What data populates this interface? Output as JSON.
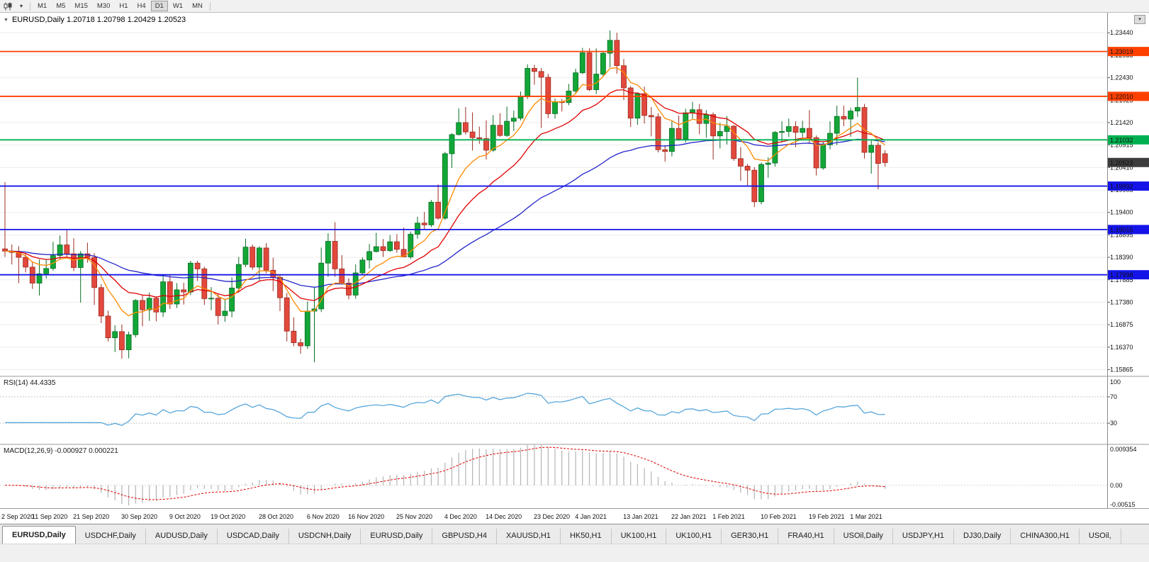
{
  "toolbar": {
    "chart_type_icon": "candlestick-chart-icon",
    "dropdown_glyph": "▾",
    "timeframes": [
      {
        "label": "M1",
        "active": false
      },
      {
        "label": "M5",
        "active": false
      },
      {
        "label": "M15",
        "active": false
      },
      {
        "label": "M30",
        "active": false
      },
      {
        "label": "H1",
        "active": false
      },
      {
        "label": "H4",
        "active": false
      },
      {
        "label": "D1",
        "active": true
      },
      {
        "label": "W1",
        "active": false
      },
      {
        "label": "MN",
        "active": false
      }
    ]
  },
  "chart": {
    "title": "EURUSD,Daily 1.20718 1.20798 1.20429 1.20523",
    "collapse_glyph": "▼",
    "corner_button_glyph": "▾"
  },
  "indicators": {
    "rsi": {
      "label": "RSI(14) 44.4335"
    },
    "macd": {
      "label": "MACD(12,26,9) -0.000927 0.000221"
    }
  },
  "chart_data": {
    "type": "candlestick",
    "symbol": "EURUSD",
    "timeframe": "Daily",
    "ohlc_current": {
      "open": 1.20718,
      "high": 1.20798,
      "low": 1.20429,
      "close": 1.20523
    },
    "ylim": [
      1.1573,
      1.2389
    ],
    "price_ticks": [
      "1.23440",
      "1.22935",
      "1.22430",
      "1.21925",
      "1.21420",
      "1.20915",
      "1.20410",
      "1.19905",
      "1.19400",
      "1.18895",
      "1.18390",
      "1.17885",
      "1.17380",
      "1.16875",
      "1.16370",
      "1.15865"
    ],
    "colors": {
      "bull": "#12a637",
      "bull_border": "#0a6e26",
      "bear": "#e2483c",
      "bear_border": "#9c2d22"
    },
    "candles": [
      [
        1.1858,
        1.2008,
        1.184,
        1.1853
      ],
      [
        1.1853,
        1.1868,
        1.1823,
        1.185
      ],
      [
        1.185,
        1.1864,
        1.1781,
        1.1839
      ],
      [
        1.1839,
        1.1848,
        1.1805,
        1.1817
      ],
      [
        1.1817,
        1.1829,
        1.1768,
        1.1781
      ],
      [
        1.1781,
        1.1834,
        1.1753,
        1.1802
      ],
      [
        1.1802,
        1.1835,
        1.1791,
        1.1814
      ],
      [
        1.1814,
        1.1874,
        1.1809,
        1.1843
      ],
      [
        1.1843,
        1.1888,
        1.1835,
        1.1867
      ],
      [
        1.1867,
        1.19,
        1.184,
        1.1847
      ],
      [
        1.1847,
        1.1882,
        1.1808,
        1.1816
      ],
      [
        1.1816,
        1.1853,
        1.1737,
        1.1847
      ],
      [
        1.1847,
        1.1872,
        1.1827,
        1.1839
      ],
      [
        1.1839,
        1.1848,
        1.1732,
        1.1771
      ],
      [
        1.1771,
        1.1779,
        1.1691,
        1.1707
      ],
      [
        1.1707,
        1.1719,
        1.165,
        1.1658
      ],
      [
        1.1658,
        1.1686,
        1.1626,
        1.1672
      ],
      [
        1.1672,
        1.1688,
        1.1611,
        1.1631
      ],
      [
        1.1631,
        1.1672,
        1.1612,
        1.1665
      ],
      [
        1.1665,
        1.1745,
        1.1659,
        1.1742
      ],
      [
        1.1742,
        1.1755,
        1.1684,
        1.1721
      ],
      [
        1.1721,
        1.176,
        1.1696,
        1.1747
      ],
      [
        1.1747,
        1.1751,
        1.1695,
        1.1716
      ],
      [
        1.1716,
        1.1797,
        1.1705,
        1.1784
      ],
      [
        1.1784,
        1.1799,
        1.1723,
        1.1734
      ],
      [
        1.1734,
        1.1781,
        1.1725,
        1.1766
      ],
      [
        1.1766,
        1.1782,
        1.1733,
        1.1761
      ],
      [
        1.1761,
        1.1831,
        1.1754,
        1.1826
      ],
      [
        1.1826,
        1.1831,
        1.1786,
        1.1813
      ],
      [
        1.1813,
        1.1818,
        1.1732,
        1.1746
      ],
      [
        1.1746,
        1.1772,
        1.172,
        1.1747
      ],
      [
        1.1747,
        1.1758,
        1.1688,
        1.1708
      ],
      [
        1.1708,
        1.1746,
        1.1694,
        1.1718
      ],
      [
        1.1718,
        1.1794,
        1.1704,
        1.177
      ],
      [
        1.177,
        1.184,
        1.176,
        1.1823
      ],
      [
        1.1823,
        1.1881,
        1.1817,
        1.1862
      ],
      [
        1.1862,
        1.1868,
        1.1811,
        1.1817
      ],
      [
        1.1817,
        1.1864,
        1.1787,
        1.186
      ],
      [
        1.186,
        1.1871,
        1.1803,
        1.181
      ],
      [
        1.181,
        1.1838,
        1.1763,
        1.1794
      ],
      [
        1.1794,
        1.18,
        1.1718,
        1.1748
      ],
      [
        1.1748,
        1.1759,
        1.165,
        1.1673
      ],
      [
        1.1673,
        1.1704,
        1.1639,
        1.1647
      ],
      [
        1.1647,
        1.1656,
        1.1622,
        1.164
      ],
      [
        1.164,
        1.174,
        1.1633,
        1.1718
      ],
      [
        1.1718,
        1.1771,
        1.1603,
        1.1723
      ],
      [
        1.1723,
        1.1861,
        1.1716,
        1.1826
      ],
      [
        1.1826,
        1.1893,
        1.1795,
        1.1875
      ],
      [
        1.1875,
        1.1918,
        1.1795,
        1.1813
      ],
      [
        1.1813,
        1.1844,
        1.1778,
        1.1781
      ],
      [
        1.1781,
        1.1792,
        1.1745,
        1.1754
      ],
      [
        1.1754,
        1.1823,
        1.1746,
        1.1804
      ],
      [
        1.1804,
        1.1839,
        1.1799,
        1.1833
      ],
      [
        1.1833,
        1.1869,
        1.1814,
        1.1852
      ],
      [
        1.1852,
        1.1894,
        1.185,
        1.1863
      ],
      [
        1.1863,
        1.188,
        1.184,
        1.1854
      ],
      [
        1.1854,
        1.1889,
        1.1851,
        1.1874
      ],
      [
        1.1874,
        1.1891,
        1.1849,
        1.1857
      ],
      [
        1.1857,
        1.1906,
        1.1839,
        1.184
      ],
      [
        1.184,
        1.1897,
        1.1835,
        1.1891
      ],
      [
        1.1891,
        1.193,
        1.1881,
        1.1916
      ],
      [
        1.1916,
        1.1941,
        1.1903,
        1.1912
      ],
      [
        1.1912,
        1.1968,
        1.1907,
        1.1963
      ],
      [
        1.1963,
        1.2003,
        1.1924,
        1.1927
      ],
      [
        1.1927,
        1.2076,
        1.1923,
        1.2072
      ],
      [
        1.2072,
        1.2118,
        1.204,
        1.2115
      ],
      [
        1.2115,
        1.2174,
        1.2113,
        1.2142
      ],
      [
        1.2142,
        1.2177,
        1.2115,
        1.2121
      ],
      [
        1.2121,
        1.2165,
        1.2079,
        1.2108
      ],
      [
        1.2108,
        1.2133,
        1.2094,
        1.2106
      ],
      [
        1.2106,
        1.2147,
        1.2059,
        1.208
      ],
      [
        1.208,
        1.2159,
        1.2076,
        1.2136
      ],
      [
        1.2136,
        1.2163,
        1.211,
        1.2113
      ],
      [
        1.2113,
        1.2178,
        1.211,
        1.2145
      ],
      [
        1.2145,
        1.2169,
        1.2123,
        1.2152
      ],
      [
        1.2152,
        1.2212,
        1.2147,
        1.22
      ],
      [
        1.22,
        1.2273,
        1.2195,
        1.2264
      ],
      [
        1.2264,
        1.2272,
        1.2227,
        1.2257
      ],
      [
        1.2257,
        1.2265,
        1.213,
        1.2244
      ],
      [
        1.2244,
        1.2252,
        1.2152,
        1.2162
      ],
      [
        1.2162,
        1.2196,
        1.2151,
        1.2189
      ],
      [
        1.2189,
        1.2195,
        1.2167,
        1.2187
      ],
      [
        1.2187,
        1.2229,
        1.2181,
        1.2213
      ],
      [
        1.2213,
        1.2263,
        1.2208,
        1.2254
      ],
      [
        1.2254,
        1.231,
        1.2251,
        1.2299
      ],
      [
        1.2299,
        1.2309,
        1.2213,
        1.2216
      ],
      [
        1.2216,
        1.2309,
        1.2206,
        1.2251
      ],
      [
        1.2251,
        1.2303,
        1.2247,
        1.2298
      ],
      [
        1.2298,
        1.2349,
        1.2266,
        1.2327
      ],
      [
        1.2327,
        1.2344,
        1.2252,
        1.227
      ],
      [
        1.227,
        1.2285,
        1.2193,
        1.222
      ],
      [
        1.222,
        1.2224,
        1.2132,
        1.2152
      ],
      [
        1.2152,
        1.2209,
        1.2137,
        1.2207
      ],
      [
        1.2207,
        1.2223,
        1.214,
        1.2158
      ],
      [
        1.2158,
        1.2177,
        1.2111,
        1.2155
      ],
      [
        1.2155,
        1.2163,
        1.2075,
        1.2081
      ],
      [
        1.2081,
        1.2091,
        1.2054,
        1.2077
      ],
      [
        1.2077,
        1.2145,
        1.2066,
        1.2129
      ],
      [
        1.2129,
        1.2158,
        1.2101,
        1.2105
      ],
      [
        1.2105,
        1.2173,
        1.2097,
        1.2164
      ],
      [
        1.2164,
        1.2189,
        1.2151,
        1.2171
      ],
      [
        1.2171,
        1.2184,
        1.2116,
        1.214
      ],
      [
        1.214,
        1.217,
        1.2108,
        1.216
      ],
      [
        1.216,
        1.2165,
        1.2059,
        1.2112
      ],
      [
        1.2112,
        1.2142,
        1.2084,
        1.2122
      ],
      [
        1.2122,
        1.2157,
        1.2093,
        1.2134
      ],
      [
        1.2134,
        1.2136,
        1.2056,
        1.2061
      ],
      [
        1.2061,
        1.2087,
        1.2011,
        1.2044
      ],
      [
        1.2044,
        1.2049,
        1.1999,
        1.2035
      ],
      [
        1.2035,
        1.2042,
        1.1952,
        1.1964
      ],
      [
        1.1964,
        1.2052,
        1.1958,
        1.2048
      ],
      [
        1.2048,
        1.2064,
        1.2018,
        1.2051
      ],
      [
        1.2051,
        1.2123,
        1.2043,
        1.212
      ],
      [
        1.212,
        1.2145,
        1.2097,
        1.2122
      ],
      [
        1.2122,
        1.2151,
        1.211,
        1.2133
      ],
      [
        1.2133,
        1.2145,
        1.2087,
        1.212
      ],
      [
        1.212,
        1.2146,
        1.2109,
        1.2129
      ],
      [
        1.2129,
        1.217,
        1.2094,
        1.2108
      ],
      [
        1.2108,
        1.2113,
        1.2023,
        1.204
      ],
      [
        1.204,
        1.2098,
        1.2036,
        1.2092
      ],
      [
        1.2092,
        1.2145,
        1.2082,
        1.2118
      ],
      [
        1.2118,
        1.218,
        1.2091,
        1.2156
      ],
      [
        1.2156,
        1.218,
        1.2134,
        1.215
      ],
      [
        1.215,
        1.2175,
        1.211,
        1.2168
      ],
      [
        1.2168,
        1.2243,
        1.2155,
        1.2176
      ],
      [
        1.2176,
        1.2184,
        1.2061,
        1.2075
      ],
      [
        1.2075,
        1.2102,
        1.2027,
        1.2091
      ],
      [
        1.2091,
        1.2098,
        1.1992,
        1.205
      ],
      [
        1.2072,
        1.208,
        1.2043,
        1.2052
      ]
    ],
    "moving_averages": [
      {
        "period": 50,
        "color": "#2424cc"
      },
      {
        "period": 18,
        "color": "#e00000"
      },
      {
        "period": 8,
        "color": "#ff8a00"
      }
    ],
    "horizontal_lines": [
      {
        "price": 1.23019,
        "label": "1.23019",
        "color": "#ff4000"
      },
      {
        "price": 1.2201,
        "label": "1.22010",
        "color": "#ff4000"
      },
      {
        "price": 1.21032,
        "label": "1.21032",
        "color": "#00b050"
      },
      {
        "price": 1.19992,
        "label": "1.19992",
        "color": "#1414e8"
      },
      {
        "price": 1.19015,
        "label": "1.19015",
        "color": "#1414e8"
      },
      {
        "price": 1.17998,
        "label": "1.17998",
        "color": "#1414e8"
      }
    ],
    "current_price": {
      "price": 1.20523,
      "label": "1.20523",
      "bg": "#3c3c3c"
    },
    "rsi": {
      "period": 14,
      "current": 44.4335,
      "levels": [
        70,
        30
      ],
      "ylim": [
        0,
        100
      ],
      "axis_labels": [
        "100",
        "70",
        "30"
      ],
      "color": "#4aa0d8"
    },
    "macd": {
      "fast": 12,
      "slow": 26,
      "signal": 9,
      "main": -0.000927,
      "signal_value": 0.000221,
      "ylim": [
        -0.00515,
        0.009354
      ],
      "axis_labels": [
        "0.009354",
        "0.00",
        "-0.00515"
      ],
      "histogram_color": "#b4b4b4",
      "signal_color": "#e00000"
    },
    "date_labels": [
      {
        "label": "2 Sep 2020",
        "index": 0
      },
      {
        "label": "11 Sep 2020",
        "index": 7
      },
      {
        "label": "21 Sep 2020",
        "index": 13
      },
      {
        "label": "30 Sep 2020",
        "index": 20
      },
      {
        "label": "9 Oct 2020",
        "index": 27
      },
      {
        "label": "19 Oct 2020",
        "index": 33
      },
      {
        "label": "28 Oct 2020",
        "index": 40
      },
      {
        "label": "6 Nov 2020",
        "index": 47
      },
      {
        "label": "16 Nov 2020",
        "index": 53
      },
      {
        "label": "25 Nov 2020",
        "index": 60
      },
      {
        "label": "4 Dec 2020",
        "index": 67
      },
      {
        "label": "14 Dec 2020",
        "index": 73
      },
      {
        "label": "23 Dec 2020",
        "index": 80
      },
      {
        "label": "4 Jan 2021",
        "index": 86
      },
      {
        "label": "13 Jan 2021",
        "index": 93
      },
      {
        "label": "22 Jan 2021",
        "index": 100
      },
      {
        "label": "1 Feb 2021",
        "index": 106
      },
      {
        "label": "10 Feb 2021",
        "index": 113
      },
      {
        "label": "19 Feb 2021",
        "index": 120
      },
      {
        "label": "1 Mar 2021",
        "index": 126
      }
    ]
  },
  "tabs": [
    {
      "label": "EURUSD,Daily",
      "active": true
    },
    {
      "label": "USDCHF,Daily",
      "active": false
    },
    {
      "label": "AUDUSD,Daily",
      "active": false
    },
    {
      "label": "USDCAD,Daily",
      "active": false
    },
    {
      "label": "USDCNH,Daily",
      "active": false
    },
    {
      "label": "EURUSD,Daily",
      "active": false
    },
    {
      "label": "GBPUSD,H4",
      "active": false
    },
    {
      "label": "XAUUSD,H1",
      "active": false
    },
    {
      "label": "HK50,H1",
      "active": false
    },
    {
      "label": "UK100,H1",
      "active": false
    },
    {
      "label": "UK100,H1",
      "active": false
    },
    {
      "label": "GER30,H1",
      "active": false
    },
    {
      "label": "FRA40,H1",
      "active": false
    },
    {
      "label": "USOil,Daily",
      "active": false
    },
    {
      "label": "USDJPY,H1",
      "active": false
    },
    {
      "label": "DJ30,Daily",
      "active": false
    },
    {
      "label": "CHINA300,H1",
      "active": false
    },
    {
      "label": "USOil,",
      "active": false
    }
  ]
}
